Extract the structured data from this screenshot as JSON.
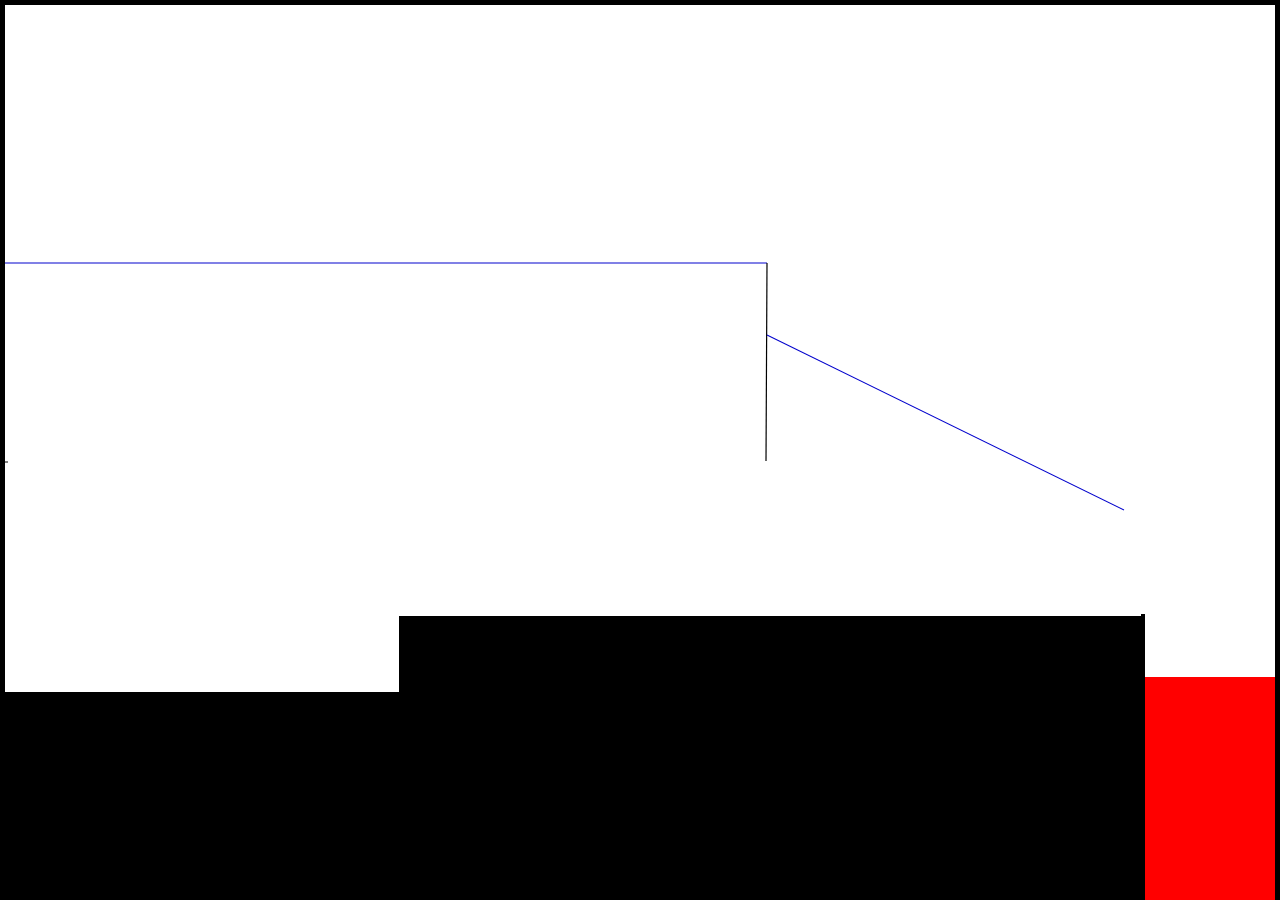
{
  "scene": {
    "background_color": "#ffffff",
    "frame_color": "#000000",
    "line_colors": {
      "wire": "#0000cc",
      "post": "#000000"
    },
    "floor_color": "#000000",
    "hazard_color": "#ff0000"
  }
}
